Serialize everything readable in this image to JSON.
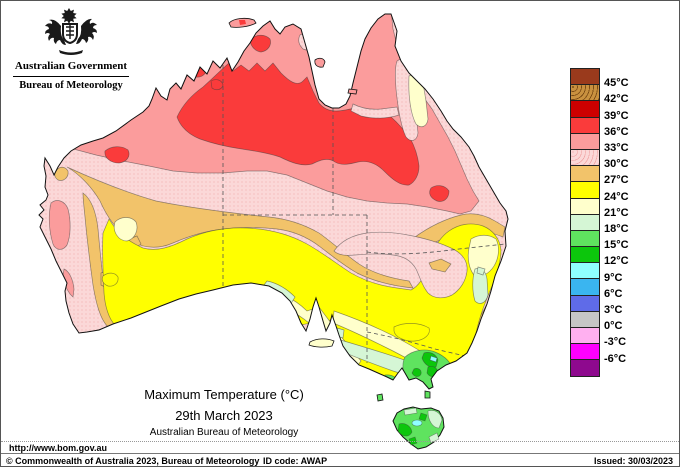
{
  "header": {
    "government": "Australian Government",
    "bureau": "Bureau of Meteorology"
  },
  "title": {
    "line1": "Maximum Temperature (°C)",
    "line2": "29th March 2023",
    "line3": "Australian Bureau of Meteorology"
  },
  "legend": {
    "unit": "°C",
    "bands": [
      {
        "color": "#9A3A1C",
        "range": "above 45"
      },
      {
        "color": "#C9913F",
        "range": "42-45",
        "texture": "speckle"
      },
      {
        "color": "#CD0000",
        "range": "39-42"
      },
      {
        "color": "#FA3B3B",
        "range": "36-39"
      },
      {
        "color": "#FB9C9C",
        "range": "33-36"
      },
      {
        "color": "#FBD8D8",
        "range": "30-33",
        "texture": "stipple"
      },
      {
        "color": "#F2C36A",
        "range": "27-30"
      },
      {
        "color": "#FFFF00",
        "range": "24-27"
      },
      {
        "color": "#FFFFCC",
        "range": "21-24"
      },
      {
        "color": "#D5F6D5",
        "range": "18-21"
      },
      {
        "color": "#5FE35F",
        "range": "15-18"
      },
      {
        "color": "#0CC60C",
        "range": "12-15"
      },
      {
        "color": "#8FFFFF",
        "range": "9-12"
      },
      {
        "color": "#3AB5F0",
        "range": "6-9"
      },
      {
        "color": "#5F6BE8",
        "range": "3-6"
      },
      {
        "color": "#C6C6C6",
        "range": "0-3"
      },
      {
        "color": "#FFB0F0",
        "range": "-3-0"
      },
      {
        "color": "#FF00FF",
        "range": "-6--3"
      },
      {
        "color": "#8E098E",
        "range": "below -6"
      }
    ],
    "labels": [
      "45°C",
      "42°C",
      "39°C",
      "36°C",
      "33°C",
      "30°C",
      "27°C",
      "24°C",
      "21°C",
      "18°C",
      "15°C",
      "12°C",
      "9°C",
      "6°C",
      "3°C",
      "0°C",
      "-3°C",
      "-6°C"
    ]
  },
  "footer": {
    "url": "http://www.bom.gov.au",
    "copyright": "© Commonwealth of Australia 2023, Bureau of Meteorology",
    "id_code": "ID code: AWAP",
    "issued": "Issued: 30/03/2023"
  }
}
